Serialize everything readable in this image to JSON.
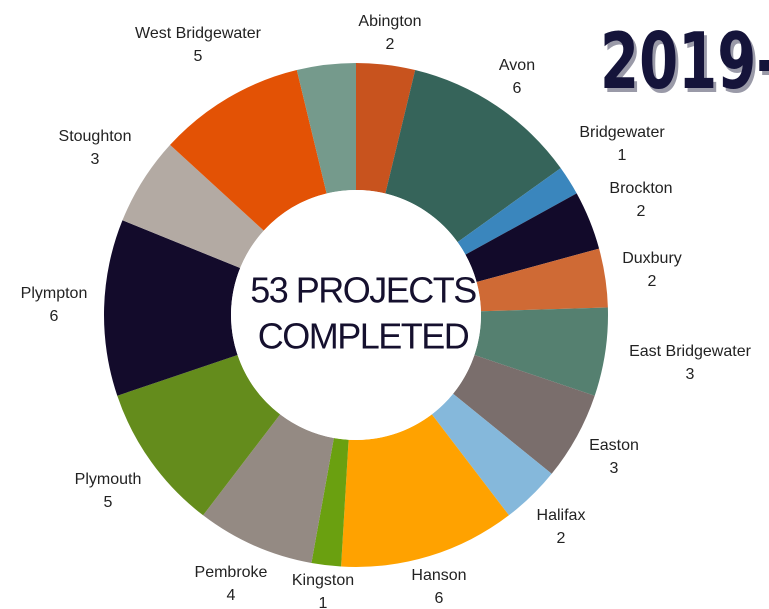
{
  "chart_data": {
    "type": "donut",
    "title": "2019-",
    "center_text": [
      "53 PROJECTS",
      "COMPLETED"
    ],
    "categories": [
      "Abington",
      "Avon",
      "Bridgewater",
      "Brockton",
      "Duxbury",
      "East Bridgewater",
      "Easton",
      "Halifax",
      "Hanson",
      "Kingston",
      "Pembroke",
      "Plymouth",
      "Plympton",
      "Stoughton",
      "West Bridgewater",
      null
    ],
    "values": [
      2,
      6,
      1,
      2,
      2,
      3,
      3,
      2,
      6,
      1,
      4,
      5,
      6,
      3,
      5,
      2
    ],
    "colors": [
      "#c8531e",
      "#36645a",
      "#3a86bd",
      "#120a2a",
      "#cf6a35",
      "#558070",
      "#7a6e6c",
      "#85b8db",
      "#ffa200",
      "#6aa010",
      "#948a83",
      "#648c1c",
      "#130b2b",
      "#b3aaa3",
      "#e35205",
      "#759a8c"
    ]
  }
}
